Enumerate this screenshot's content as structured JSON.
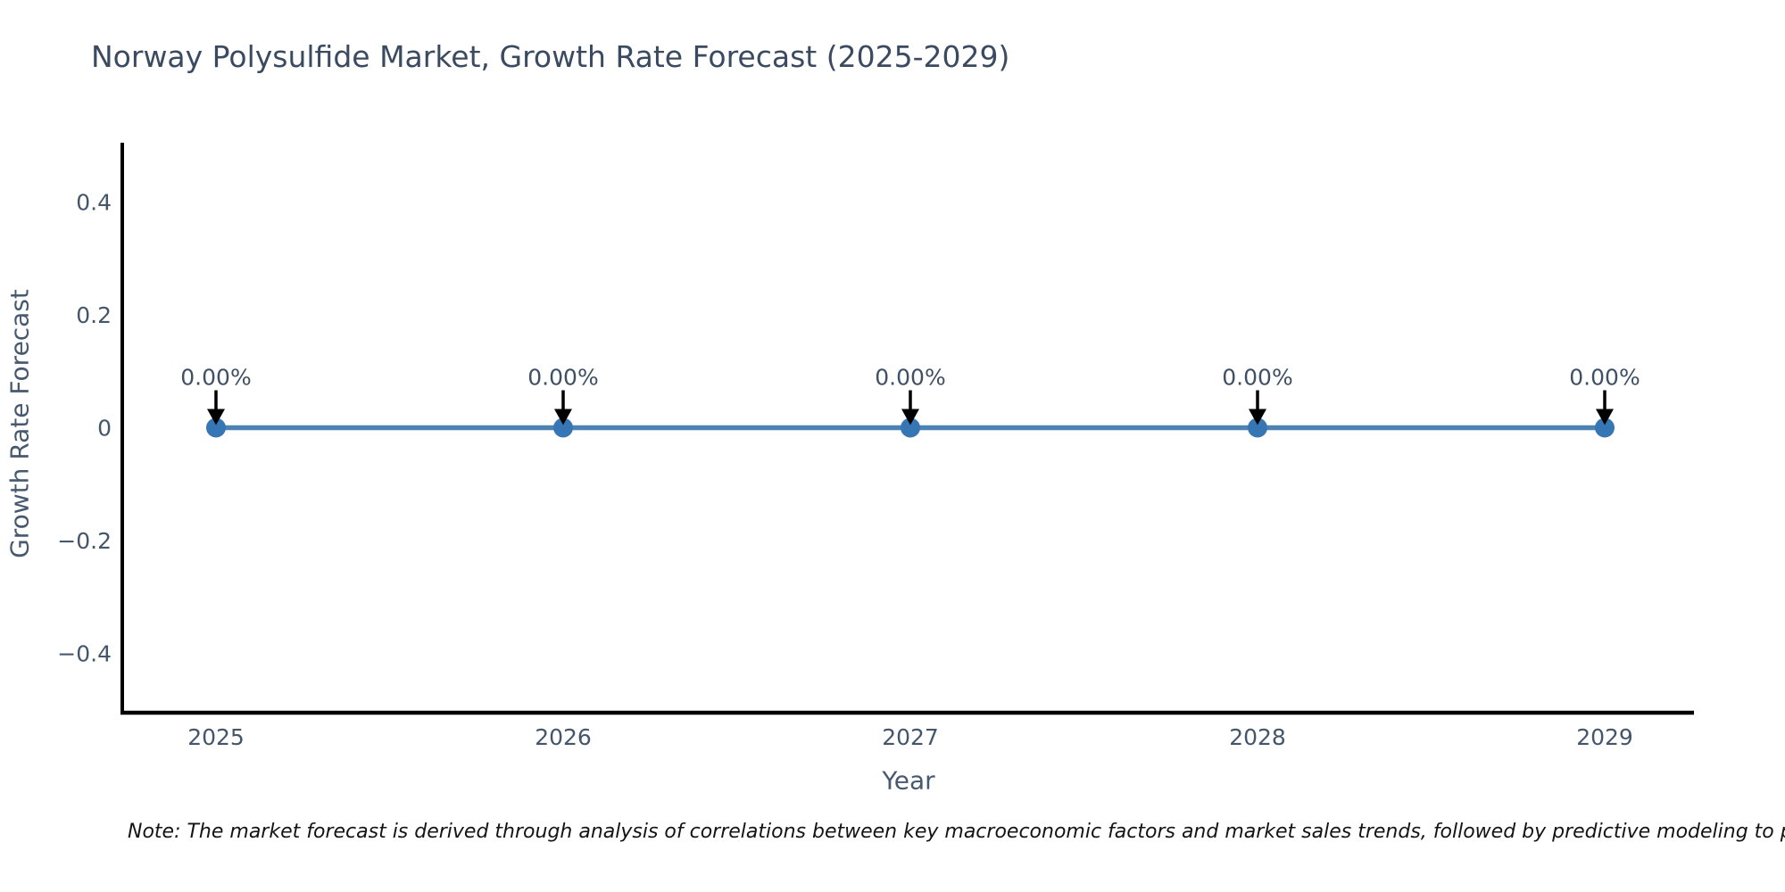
{
  "chart_data": {
    "type": "line",
    "title": "Norway Polysulfide Market, Growth Rate Forecast (2025-2029)",
    "xlabel": "Year",
    "ylabel": "Growth Rate Forecast",
    "x": [
      "2025",
      "2026",
      "2027",
      "2028",
      "2029"
    ],
    "values": [
      0,
      0,
      0,
      0,
      0
    ],
    "point_labels": [
      "0.00%",
      "0.00%",
      "0.00%",
      "0.00%",
      "0.00%"
    ],
    "yticks": [
      0.4,
      0.2,
      0,
      -0.2,
      -0.4
    ],
    "ylim": [
      -0.505,
      0.505
    ],
    "grid": false,
    "legend": "none",
    "colors": {
      "line": "#4e82b2",
      "marker": "#3776b4",
      "arrow": "#000000",
      "spine": "#000000",
      "tick_text": "#44566c",
      "title_text": "#3a4a61",
      "annotation_text": "#3f5065",
      "note_text": "#141414",
      "background": "#ffffff"
    }
  },
  "footnote": "Note: The market forecast is derived through analysis of correlations between key macroeconomic factors and market sales trends, followed by predictive modeling to project future sales"
}
